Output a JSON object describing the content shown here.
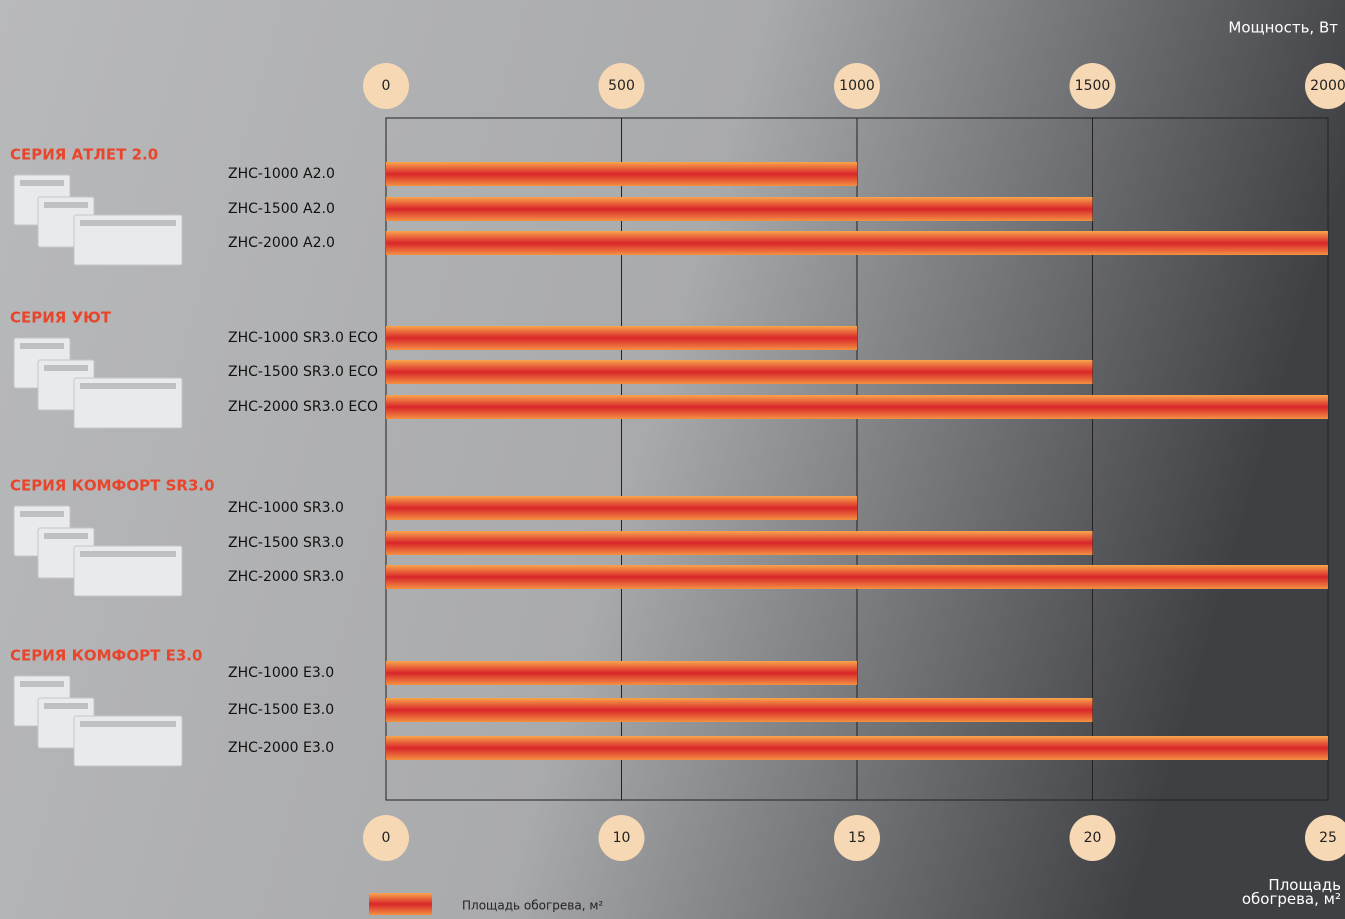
{
  "chart_data": {
    "type": "bar",
    "orientation": "horizontal",
    "xlabel": "Мощность, Вт",
    "x2label": "Площадь обогрева, м²",
    "legend": "Площадь обогрева, м²",
    "xlim": [
      0,
      2000
    ],
    "xticks": [
      0,
      500,
      1000,
      1500,
      2000
    ],
    "x2ticks": [
      {
        "value": 0,
        "label": "0"
      },
      {
        "value": 500,
        "label": "10"
      },
      {
        "value": 1000,
        "label": "15"
      },
      {
        "value": 1500,
        "label": "20"
      },
      {
        "value": 2000,
        "label": "25"
      }
    ],
    "grid": true,
    "color": "#d9262a",
    "groups": [
      {
        "name": "СЕРИЯ АТЛЕТ 2.0",
        "categories": [
          "ZHC-1000 A2.0",
          "ZHC-1500 A2.0",
          "ZHC-2000 A2.0"
        ],
        "values": [
          1000,
          1500,
          2000
        ]
      },
      {
        "name": "СЕРИЯ УЮТ",
        "categories": [
          "ZHC-1000 SR3.0 ECO",
          "ZHC-1500 SR3.0 ECO",
          "ZHC-2000 SR3.0 ECO"
        ],
        "values": [
          1000,
          1500,
          2000
        ]
      },
      {
        "name": "СЕРИЯ КОМФОРТ SR3.0",
        "categories": [
          "ZHC-1000 SR3.0",
          "ZHC-1500 SR3.0",
          "ZHC-2000 SR3.0"
        ],
        "values": [
          1000,
          1500,
          2000
        ]
      },
      {
        "name": "СЕРИЯ КОМФОРТ E3.0",
        "categories": [
          "ZHC-1000 E3.0",
          "ZHC-1500 E3.0",
          "ZHC-2000 E3.0"
        ],
        "values": [
          1000,
          1500,
          2000
        ]
      }
    ]
  }
}
